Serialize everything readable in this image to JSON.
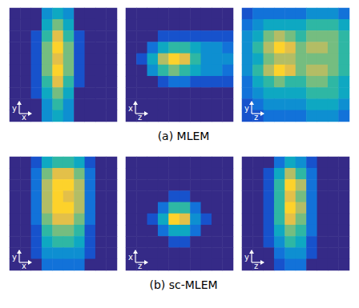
{
  "chart_data": [
    {
      "type": "heatmap",
      "title": "(a) MLEM",
      "tick_labels": false,
      "color_range": [
        0,
        10
      ],
      "panels": [
        {
          "x_label": "x",
          "y_label": "y",
          "cells": [
            [
              0,
              0,
              0,
              3,
              4,
              3,
              0,
              0,
              0,
              0
            ],
            [
              0,
              0,
              0,
              4,
              6,
              4,
              0,
              0,
              0,
              0
            ],
            [
              0,
              0,
              1,
              5,
              8,
              5,
              1,
              0,
              0,
              0
            ],
            [
              0,
              0,
              1,
              6,
              9,
              6,
              1,
              0,
              0,
              0
            ],
            [
              0,
              0,
              1,
              6,
              8,
              6,
              1,
              0,
              0,
              0
            ],
            [
              0,
              0,
              1,
              6,
              9,
              6,
              1,
              0,
              0,
              0
            ],
            [
              0,
              0,
              1,
              5,
              8,
              5,
              1,
              0,
              0,
              0
            ],
            [
              0,
              0,
              1,
              4,
              6,
              4,
              0,
              0,
              0,
              0
            ],
            [
              0,
              0,
              0,
              3,
              5,
              3,
              0,
              0,
              0,
              0
            ],
            [
              0,
              0,
              0,
              3,
              4,
              3,
              0,
              0,
              0,
              0
            ]
          ]
        },
        {
          "x_label": "z",
          "y_label": "x",
          "cells": [
            [
              0,
              0,
              0,
              0,
              0,
              0,
              0,
              0,
              0,
              0
            ],
            [
              0,
              0,
              0,
              0,
              0,
              0,
              0,
              0,
              0,
              0
            ],
            [
              0,
              0,
              0,
              1,
              1,
              1,
              1,
              1,
              1,
              1
            ],
            [
              0,
              0,
              2,
              4,
              5,
              5,
              4,
              3,
              3,
              2
            ],
            [
              0,
              1,
              4,
              7,
              9,
              8,
              5,
              3,
              3,
              3
            ],
            [
              0,
              0,
              3,
              5,
              6,
              5,
              4,
              3,
              3,
              2
            ],
            [
              0,
              0,
              0,
              1,
              2,
              2,
              1,
              1,
              1,
              1
            ],
            [
              0,
              0,
              0,
              0,
              0,
              0,
              0,
              0,
              0,
              0
            ],
            [
              0,
              0,
              0,
              0,
              0,
              0,
              0,
              0,
              0,
              0
            ],
            [
              0,
              0,
              0,
              0,
              0,
              0,
              0,
              0,
              0,
              0
            ]
          ]
        },
        {
          "x_label": "z",
          "y_label": "y",
          "cells": [
            [
              1,
              2,
              2,
              2,
              2,
              2,
              3,
              3,
              3,
              2
            ],
            [
              2,
              3,
              4,
              4,
              4,
              4,
              5,
              5,
              5,
              4
            ],
            [
              3,
              4,
              6,
              7,
              6,
              5,
              6,
              6,
              6,
              5
            ],
            [
              3,
              5,
              7,
              9,
              8,
              6,
              7,
              7,
              6,
              5
            ],
            [
              3,
              4,
              6,
              7,
              7,
              6,
              6,
              6,
              6,
              5
            ],
            [
              3,
              5,
              7,
              9,
              8,
              6,
              7,
              7,
              6,
              5
            ],
            [
              2,
              4,
              5,
              6,
              5,
              5,
              6,
              6,
              5,
              4
            ],
            [
              2,
              3,
              4,
              4,
              4,
              4,
              5,
              5,
              5,
              4
            ],
            [
              1,
              2,
              3,
              3,
              3,
              3,
              4,
              4,
              4,
              3
            ],
            [
              1,
              1,
              2,
              2,
              2,
              2,
              3,
              3,
              3,
              2
            ]
          ]
        }
      ]
    },
    {
      "type": "heatmap",
      "title": "(b) sc-MLEM",
      "tick_labels": false,
      "color_range": [
        0,
        10
      ],
      "panels": [
        {
          "x_label": "x",
          "y_label": "y",
          "cells": [
            [
              0,
              0,
              1,
              4,
              5,
              5,
              4,
              1,
              0,
              0
            ],
            [
              0,
              0,
              2,
              6,
              8,
              8,
              6,
              2,
              0,
              0
            ],
            [
              0,
              0,
              2,
              7,
              9,
              9,
              7,
              2,
              0,
              0
            ],
            [
              0,
              0,
              2,
              7,
              9,
              8,
              7,
              2,
              0,
              0
            ],
            [
              0,
              0,
              2,
              7,
              9,
              9,
              7,
              2,
              0,
              0
            ],
            [
              0,
              0,
              2,
              6,
              8,
              8,
              6,
              2,
              0,
              0
            ],
            [
              0,
              0,
              1,
              5,
              6,
              6,
              5,
              1,
              0,
              0
            ],
            [
              0,
              0,
              1,
              4,
              5,
              5,
              4,
              1,
              0,
              0
            ],
            [
              0,
              0,
              1,
              3,
              3,
              3,
              3,
              1,
              0,
              0
            ],
            [
              0,
              0,
              0,
              2,
              2,
              2,
              2,
              0,
              0,
              0
            ]
          ]
        },
        {
          "x_label": "z",
          "y_label": "x",
          "cells": [
            [
              0,
              0,
              0,
              0,
              0,
              0,
              0,
              0,
              0,
              0
            ],
            [
              0,
              0,
              0,
              0,
              0,
              0,
              0,
              0,
              0,
              0
            ],
            [
              0,
              0,
              0,
              0,
              0,
              0,
              0,
              0,
              0,
              0
            ],
            [
              0,
              0,
              0,
              0,
              1,
              1,
              0,
              0,
              0,
              0
            ],
            [
              0,
              0,
              0,
              2,
              5,
              5,
              2,
              0,
              0,
              0
            ],
            [
              0,
              0,
              1,
              4,
              9,
              8,
              3,
              1,
              0,
              0
            ],
            [
              0,
              0,
              0,
              2,
              4,
              4,
              2,
              0,
              0,
              0
            ],
            [
              0,
              0,
              0,
              0,
              1,
              1,
              0,
              0,
              0,
              0
            ],
            [
              0,
              0,
              0,
              0,
              0,
              0,
              0,
              0,
              0,
              0
            ],
            [
              0,
              0,
              0,
              0,
              0,
              0,
              0,
              0,
              0,
              0
            ]
          ]
        },
        {
          "x_label": "z",
          "y_label": "y",
          "cells": [
            [
              0,
              0,
              0,
              2,
              4,
              3,
              1,
              0,
              0,
              0
            ],
            [
              0,
              0,
              1,
              4,
              7,
              5,
              2,
              0,
              0,
              0
            ],
            [
              0,
              0,
              1,
              5,
              9,
              7,
              2,
              0,
              0,
              0
            ],
            [
              0,
              0,
              1,
              5,
              8,
              6,
              2,
              0,
              0,
              0
            ],
            [
              0,
              0,
              1,
              5,
              9,
              7,
              2,
              0,
              0,
              0
            ],
            [
              0,
              0,
              1,
              5,
              8,
              6,
              2,
              0,
              0,
              0
            ],
            [
              0,
              0,
              1,
              4,
              6,
              5,
              2,
              0,
              0,
              0
            ],
            [
              0,
              0,
              1,
              3,
              5,
              4,
              1,
              0,
              0,
              0
            ],
            [
              0,
              0,
              0,
              2,
              3,
              3,
              1,
              0,
              0,
              0
            ],
            [
              0,
              0,
              0,
              1,
              2,
              2,
              0,
              0,
              0,
              0
            ]
          ]
        }
      ]
    }
  ]
}
